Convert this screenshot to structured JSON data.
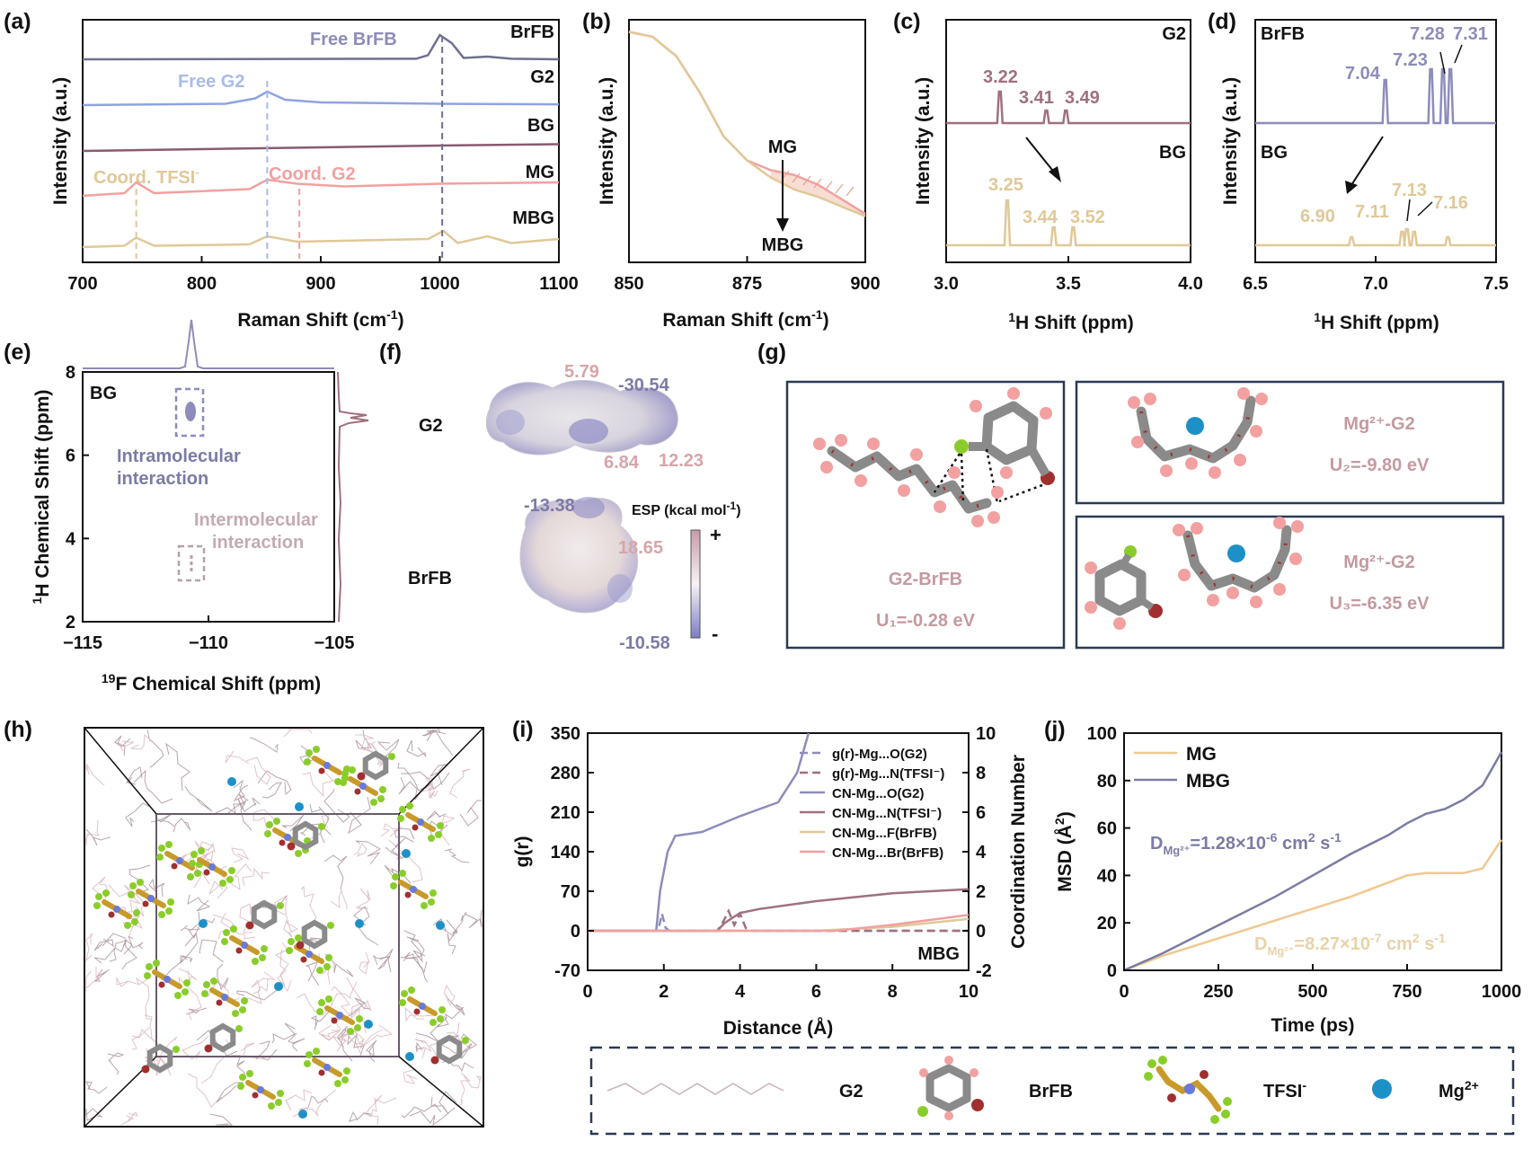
{
  "chart_data": [
    {
      "panel": "(a)",
      "type": "line",
      "xlabel": "Raman Shift (cm",
      "xlabel_sup": "-1",
      "ylabel": "Intensity (a.u.)",
      "xlim": [
        700,
        1100
      ],
      "x_ticks": [
        "700",
        "800",
        "900",
        "1000",
        "1100"
      ],
      "series": [
        {
          "name": "BrFB",
          "color": "#6f6f8f",
          "offset": 4,
          "points": [
            [
              700,
              0
            ],
            [
              980,
              0.02
            ],
            [
              990,
              0.15
            ],
            [
              1000,
              0.9
            ],
            [
              1010,
              0.6
            ],
            [
              1020,
              0.05
            ],
            [
              1040,
              0.1
            ],
            [
              1060,
              0.02
            ],
            [
              1100,
              0
            ]
          ]
        },
        {
          "name": "G2",
          "color": "#8fa3e0",
          "offset": 3,
          "points": [
            [
              700,
              0
            ],
            [
              820,
              0.05
            ],
            [
              845,
              0.25
            ],
            [
              855,
              0.5
            ],
            [
              870,
              0.2
            ],
            [
              900,
              0.1
            ],
            [
              1000,
              0.05
            ],
            [
              1100,
              0.03
            ]
          ]
        },
        {
          "name": "BG",
          "color": "#8a5a6f",
          "offset": 2,
          "points": [
            [
              700,
              0
            ],
            [
              850,
              0.1
            ],
            [
              1000,
              0.2
            ],
            [
              1100,
              0.25
            ]
          ]
        },
        {
          "name": "MG",
          "color": "#f2a0a0",
          "offset": 1,
          "points": [
            [
              700,
              0
            ],
            [
              735,
              0.1
            ],
            [
              745,
              0.5
            ],
            [
              760,
              0.1
            ],
            [
              840,
              0.25
            ],
            [
              855,
              0.6
            ],
            [
              880,
              0.45
            ],
            [
              920,
              0.35
            ],
            [
              1000,
              0.45
            ],
            [
              1100,
              0.5
            ]
          ]
        },
        {
          "name": "MBG",
          "color": "#e0c898",
          "offset": 0,
          "points": [
            [
              700,
              0
            ],
            [
              735,
              0.05
            ],
            [
              745,
              0.35
            ],
            [
              760,
              0.05
            ],
            [
              840,
              0.1
            ],
            [
              855,
              0.4
            ],
            [
              880,
              0.2
            ],
            [
              990,
              0.3
            ],
            [
              1003,
              0.6
            ],
            [
              1015,
              0.15
            ],
            [
              1040,
              0.4
            ],
            [
              1060,
              0.15
            ],
            [
              1100,
              0.3
            ]
          ]
        }
      ],
      "annotations": [
        "Free BrFB",
        "Free G2",
        "Coord. TFSI",
        "Coord. G2"
      ]
    },
    {
      "panel": "(b)",
      "type": "line",
      "xlabel": "Raman Shift (cm",
      "xlabel_sup": "-1",
      "ylabel": "Intensity (a.u.)",
      "xlim": [
        850,
        900
      ],
      "x_ticks": [
        "850",
        "875",
        "900"
      ],
      "series": [
        {
          "name": "MG",
          "color": "#f2a0a0",
          "points": [
            [
              850,
              0.95
            ],
            [
              855,
              0.93
            ],
            [
              860,
              0.85
            ],
            [
              865,
              0.7
            ],
            [
              870,
              0.52
            ],
            [
              875,
              0.42
            ],
            [
              880,
              0.38
            ],
            [
              885,
              0.36
            ],
            [
              890,
              0.32
            ],
            [
              895,
              0.26
            ],
            [
              900,
              0.2
            ]
          ]
        },
        {
          "name": "MBG",
          "color": "#e0c898",
          "points": [
            [
              850,
              0.95
            ],
            [
              855,
              0.93
            ],
            [
              860,
              0.85
            ],
            [
              865,
              0.7
            ],
            [
              870,
              0.52
            ],
            [
              875,
              0.42
            ],
            [
              880,
              0.35
            ],
            [
              885,
              0.3
            ],
            [
              890,
              0.27
            ],
            [
              895,
              0.23
            ],
            [
              900,
              0.19
            ]
          ]
        }
      ],
      "annotations": [
        "MG",
        "MBG"
      ]
    },
    {
      "panel": "(c)",
      "type": "line",
      "xlabel": "H Shift (ppm)",
      "xlabel_sup": "1",
      "ylabel": "Intensity (a.u.)",
      "xlim": [
        3.0,
        4.0
      ],
      "x_ticks": [
        "3.0",
        "3.5",
        "4.0"
      ],
      "series": [
        {
          "name": "G2",
          "color": "#a0707e",
          "peaks": [
            [
              3.22,
              1.0
            ],
            [
              3.41,
              0.4
            ],
            [
              3.49,
              0.4
            ]
          ],
          "peak_labels": [
            "3.22",
            "3.41",
            "3.49"
          ]
        },
        {
          "name": "BG",
          "color": "#e0c898",
          "peaks": [
            [
              3.25,
              1.0
            ],
            [
              3.44,
              0.4
            ],
            [
              3.52,
              0.4
            ]
          ],
          "peak_labels": [
            "3.25",
            "3.44",
            "3.52"
          ]
        }
      ]
    },
    {
      "panel": "(d)",
      "type": "line",
      "xlabel": "H Shift (ppm)",
      "xlabel_sup": "1",
      "ylabel": "Intensity (a.u.)",
      "xlim": [
        6.5,
        7.5
      ],
      "x_ticks": [
        "6.5",
        "7.0",
        "7.5"
      ],
      "series": [
        {
          "name": "BrFB",
          "color": "#8e8cba",
          "peaks": [
            [
              7.04,
              0.8
            ],
            [
              7.23,
              1.0
            ],
            [
              7.28,
              1.0
            ],
            [
              7.31,
              1.0
            ]
          ],
          "peak_labels": [
            "7.04",
            "7.23",
            "7.28",
            "7.31"
          ]
        },
        {
          "name": "BG",
          "color": "#e0c898",
          "peaks": [
            [
              6.9,
              0.3
            ],
            [
              7.11,
              0.5
            ],
            [
              7.13,
              0.6
            ],
            [
              7.16,
              0.5
            ],
            [
              7.3,
              0.3
            ]
          ],
          "peak_labels": [
            "6.90",
            "7.11",
            "7.13",
            "7.16"
          ]
        }
      ]
    },
    {
      "panel": "(e)",
      "type": "heatmap",
      "xlabel": "F Chemical Shift (ppm)",
      "xlabel_sup": "19",
      "ylabel": "H Chemical Shift (ppm)",
      "ylabel_sup": "1",
      "xlim": [
        -115,
        -105
      ],
      "ylim": [
        2,
        8
      ],
      "x_ticks": [
        "−115",
        "−110",
        "−105"
      ],
      "y_ticks": [
        "2",
        "4",
        "6",
        "8"
      ],
      "inner_label": "BG",
      "annotations": [
        "Intramolecular interaction",
        "Intermolecular interaction"
      ]
    },
    {
      "panel": "(i)",
      "type": "line",
      "xlabel": "Distance (Å)",
      "ylabel": "g(r)",
      "y2label": "Coordination Number",
      "xlim": [
        0,
        10
      ],
      "ylim": [
        -70,
        350
      ],
      "y2lim": [
        -2,
        10
      ],
      "x_ticks": [
        "0",
        "2",
        "4",
        "6",
        "8",
        "10"
      ],
      "y_ticks": [
        "-70",
        "0",
        "70",
        "140",
        "210",
        "280",
        "350"
      ],
      "y2_ticks": [
        "-2",
        "0",
        "2",
        "4",
        "6",
        "8",
        "10"
      ],
      "inner_label": "MBG",
      "series": [
        {
          "name": "g(r)-Mg...O(G2)",
          "axis": "left",
          "color": "#8e8cba",
          "dashed": true,
          "points": [
            [
              0,
              0
            ],
            [
              1.85,
              0
            ],
            [
              1.95,
              30
            ],
            [
              2.05,
              5
            ],
            [
              2.15,
              0
            ],
            [
              10,
              0
            ]
          ]
        },
        {
          "name": "g(r)-Mg...N(TFSI⁻)",
          "axis": "left",
          "color": "#a0707e",
          "dashed": true,
          "points": [
            [
              0,
              0
            ],
            [
              3.4,
              0
            ],
            [
              3.55,
              15
            ],
            [
              3.7,
              35
            ],
            [
              3.85,
              10
            ],
            [
              4.0,
              30
            ],
            [
              4.15,
              5
            ],
            [
              4.3,
              0
            ],
            [
              10,
              0
            ]
          ]
        },
        {
          "name": "CN-Mg...O(G2)",
          "axis": "right",
          "color": "#8e8cba",
          "points": [
            [
              0,
              0
            ],
            [
              1.8,
              0
            ],
            [
              1.9,
              2.0
            ],
            [
              2.1,
              4.0
            ],
            [
              2.3,
              4.8
            ],
            [
              3,
              5.0
            ],
            [
              4,
              5.8
            ],
            [
              5,
              6.5
            ],
            [
              5.5,
              8
            ],
            [
              5.8,
              10.5
            ]
          ]
        },
        {
          "name": "CN-Mg...N(TFSI⁻)",
          "axis": "right",
          "color": "#a0707e",
          "points": [
            [
              0,
              0
            ],
            [
              3.4,
              0
            ],
            [
              3.6,
              0.4
            ],
            [
              4.0,
              0.9
            ],
            [
              4.5,
              1.1
            ],
            [
              6,
              1.5
            ],
            [
              8,
              1.9
            ],
            [
              10,
              2.1
            ]
          ]
        },
        {
          "name": "CN-Mg...F(BrFB)",
          "axis": "right",
          "color": "#e0c898",
          "points": [
            [
              0,
              0
            ],
            [
              6,
              0
            ],
            [
              8,
              0.2
            ],
            [
              10,
              0.6
            ]
          ]
        },
        {
          "name": "CN-Mg...Br(BrFB)",
          "axis": "right",
          "color": "#f2a0a0",
          "points": [
            [
              0,
              0
            ],
            [
              6.5,
              0
            ],
            [
              8,
              0.3
            ],
            [
              10,
              0.8
            ]
          ]
        }
      ]
    },
    {
      "panel": "(j)",
      "type": "line",
      "xlabel": "Time (ps)",
      "ylabel": "MSD (Å",
      "ylabel_sup": "2",
      "xlim": [
        0,
        1000
      ],
      "ylim": [
        0,
        100
      ],
      "x_ticks": [
        "0",
        "250",
        "500",
        "750",
        "1000"
      ],
      "y_ticks": [
        "0",
        "20",
        "40",
        "60",
        "80",
        "100"
      ],
      "series": [
        {
          "name": "MG",
          "color": "#f0c890",
          "points": [
            [
              0,
              0
            ],
            [
              100,
              6
            ],
            [
              200,
              11
            ],
            [
              300,
              16
            ],
            [
              400,
              21
            ],
            [
              500,
              26
            ],
            [
              600,
              31
            ],
            [
              700,
              37
            ],
            [
              750,
              40
            ],
            [
              800,
              41
            ],
            [
              850,
              41
            ],
            [
              900,
              41
            ],
            [
              950,
              43
            ],
            [
              1000,
              55
            ]
          ]
        },
        {
          "name": "MBG",
          "color": "#7b7ba6",
          "points": [
            [
              0,
              0
            ],
            [
              100,
              7
            ],
            [
              200,
              15
            ],
            [
              300,
              23
            ],
            [
              400,
              31
            ],
            [
              500,
              40
            ],
            [
              600,
              49
            ],
            [
              700,
              57
            ],
            [
              750,
              62
            ],
            [
              800,
              66
            ],
            [
              850,
              68
            ],
            [
              900,
              72
            ],
            [
              950,
              78
            ],
            [
              1000,
              92
            ]
          ]
        }
      ],
      "annotations": [
        "D_Mg2+=1.28×10⁻⁶ cm² s⁻¹",
        "D_Mg2+=8.27×10⁻⁷ cm² s⁻¹"
      ]
    }
  ],
  "panels": {
    "a": {
      "label": "(a)",
      "free_brfb": "Free BrFB",
      "free_g2": "Free G2",
      "coord_tfsi": "Coord. TFSI",
      "coord_tfsi_sup": "-",
      "coord_g2": "Coord. G2",
      "s1": "BrFB",
      "s2": "G2",
      "s3": "BG",
      "s4": "MG",
      "s5": "MBG"
    },
    "b": {
      "label": "(b)",
      "mg": "MG",
      "mbg": "MBG"
    },
    "c": {
      "label": "(c)",
      "top": "G2",
      "bottom": "BG",
      "p1": "3.22",
      "p2": "3.41",
      "p3": "3.49",
      "q1": "3.25",
      "q2": "3.44",
      "q3": "3.52"
    },
    "d": {
      "label": "(d)",
      "top": "BrFB",
      "bottom": "BG",
      "p1": "7.04",
      "p2": "7.23",
      "p3": "7.28",
      "p4": "7.31",
      "q1": "6.90",
      "q2": "7.11",
      "q3": "7.13",
      "q4": "7.16"
    },
    "e": {
      "label": "(e)",
      "inner": "BG",
      "intra1": "Intramolecular",
      "intra2": "interaction",
      "inter1": "Intermolecular",
      "inter2": "interaction"
    },
    "f": {
      "label": "(f)",
      "g2": "G2",
      "brfb": "BrFB",
      "v1": "5.79",
      "v2": "-30.54",
      "v3": "6.84",
      "v4": "12.23",
      "v5": "-13.38",
      "v6": "18.65",
      "v7": "-10.58",
      "esp": "ESP (kcal mol",
      "esp_sup": "-1",
      "esp_close": ")",
      "plus": "+",
      "minus": "-"
    },
    "g": {
      "label": "(g)",
      "box1_name": "G2-BrFB",
      "box1_energy": "U₁=-0.28 eV",
      "box2_name": "Mg²⁺-G2",
      "box2_energy": "U₂=-9.80 eV",
      "box3_name": "Mg²⁺-G2",
      "box3_energy": "U₃=-6.35 eV"
    },
    "h": {
      "label": "(h)"
    },
    "i": {
      "label": "(i)",
      "inner": "MBG"
    },
    "j": {
      "label": "(j)",
      "d_mbg": "D",
      "d_sub": "Mg²⁺",
      "d_mbg_val": "=1.28×10",
      "d_mbg_exp": "-6",
      "d_unit": " cm",
      "d_unit_sup": "2",
      "d_unit2": " s",
      "d_unit2_sup": "-1",
      "d_mg_val": "=8.27×10",
      "d_mg_exp": "-7"
    },
    "legend": {
      "g2": "G2",
      "brfb": "BrFB",
      "tfsi": "TFSI",
      "tfsi_sup": "-",
      "mg": "Mg",
      "mg_sup": "2+"
    }
  },
  "colors": {
    "brfb": "#6f6f8f",
    "g2": "#8fa3e0",
    "bg": "#8a5a6f",
    "mg": "#f2a0a0",
    "mbg": "#e0c898",
    "purple_text": "#7b7ba6",
    "pink_text": "#c49aa0",
    "tan_text": "#e0c898",
    "mg_ion": "#1e90c8",
    "frame": "#2a3a55"
  }
}
